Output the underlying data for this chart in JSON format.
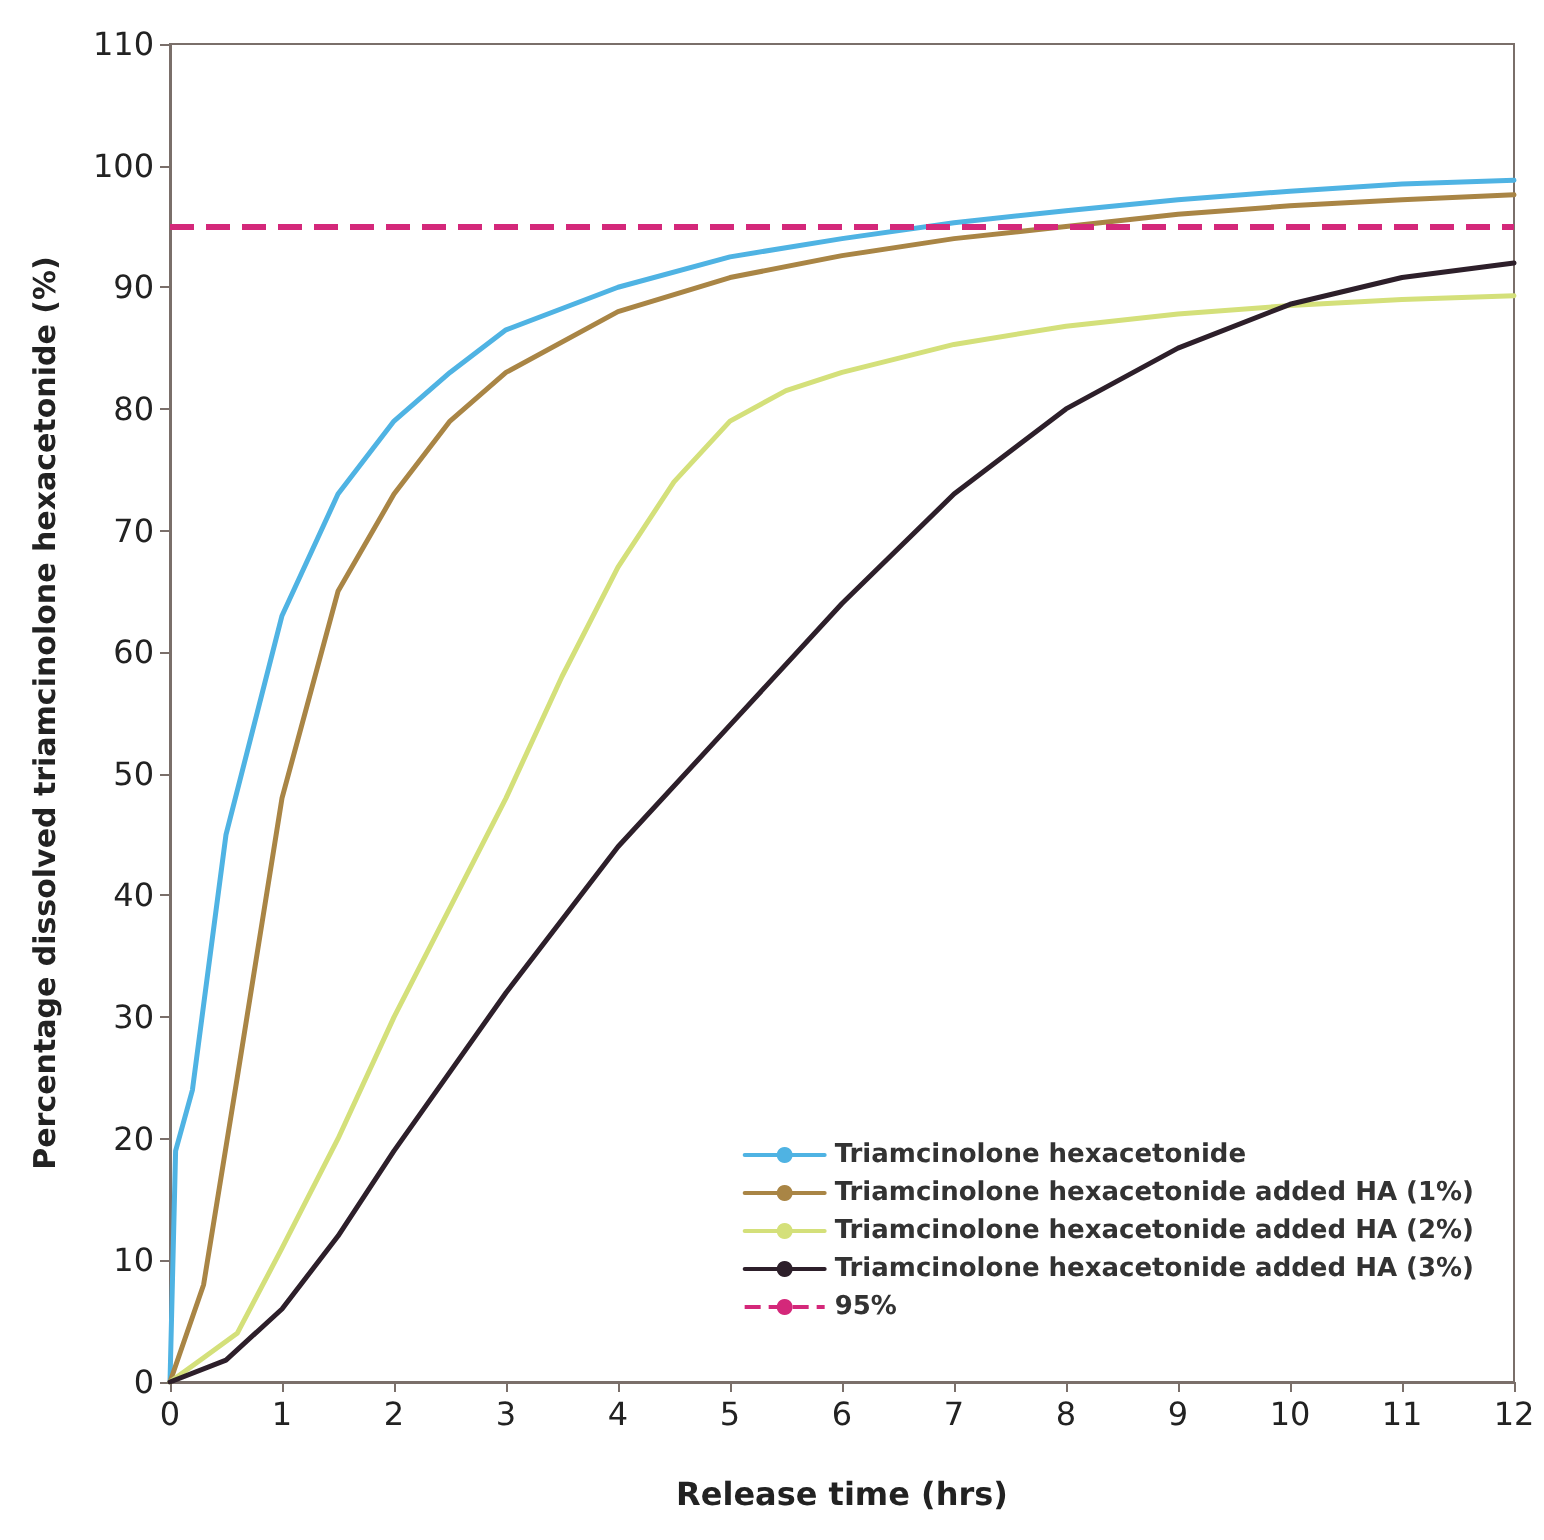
{
  "chart_data": {
    "type": "line",
    "xlabel": "Release time (hrs)",
    "ylabel": "Percentage dissolved triamcinolone hexacetonide (%)",
    "xlim": [
      0,
      12
    ],
    "xticks": [
      0,
      1,
      2,
      3,
      4,
      5,
      6,
      7,
      8,
      9,
      10,
      11,
      12
    ],
    "ylim": [
      0,
      110
    ],
    "yticks": [
      0,
      10,
      20,
      30,
      40,
      50,
      60,
      70,
      80,
      90,
      100,
      110
    ],
    "grid": false,
    "legend": "bottom right",
    "marker": "none",
    "line_style": "solid",
    "series": [
      {
        "name": "Triamcinolone hexacetonide",
        "color": "#4fb3e3",
        "x": [
          0,
          0.05,
          0.2,
          0.5,
          1,
          1.5,
          2,
          2.5,
          3,
          4,
          5,
          6,
          7,
          8,
          9,
          10,
          11,
          12
        ],
        "values": [
          0,
          19,
          24,
          45,
          63,
          73,
          79,
          83,
          86.5,
          90,
          92.5,
          94,
          95.3,
          96.3,
          97.2,
          97.9,
          98.5,
          98.8
        ]
      },
      {
        "name": "Triamcinolone hexacetonide added HA (1%)",
        "color": "#a98545",
        "x": [
          0,
          0.3,
          0.6,
          1,
          1.5,
          2,
          2.5,
          3,
          4,
          5,
          6,
          7,
          8,
          9,
          10,
          11,
          12
        ],
        "values": [
          0,
          8,
          25,
          48,
          65,
          73,
          79,
          83,
          88,
          90.8,
          92.6,
          94,
          95,
          96,
          96.7,
          97.2,
          97.6
        ]
      },
      {
        "name": "Triamcinolone hexacetonide added HA (2%)",
        "color": "#d4e07a",
        "x": [
          0,
          0.3,
          0.6,
          1,
          1.5,
          2,
          2.5,
          3,
          3.5,
          4,
          4.5,
          5,
          5.5,
          6,
          7,
          8,
          9,
          10,
          11,
          12
        ],
        "values": [
          0,
          2,
          4,
          11,
          20,
          30,
          39,
          48,
          58,
          67,
          74,
          79,
          81.5,
          83,
          85.3,
          86.8,
          87.8,
          88.5,
          89,
          89.3
        ]
      },
      {
        "name": "Triamcinolone hexacetonide added HA (3%)",
        "color": "#2d1f2a",
        "x": [
          0,
          0.5,
          1,
          1.5,
          2,
          2.5,
          3,
          4,
          5,
          6,
          7,
          8,
          9,
          10,
          11,
          12
        ],
        "values": [
          0,
          1.8,
          6,
          12,
          19,
          25.5,
          32,
          44,
          54,
          64,
          73,
          80,
          85,
          88.6,
          90.8,
          92
        ]
      }
    ],
    "ref_lines": [
      {
        "axis": "y",
        "value": 95,
        "label": "95%",
        "color": "#d4287a",
        "line_style": "dashed"
      }
    ]
  }
}
